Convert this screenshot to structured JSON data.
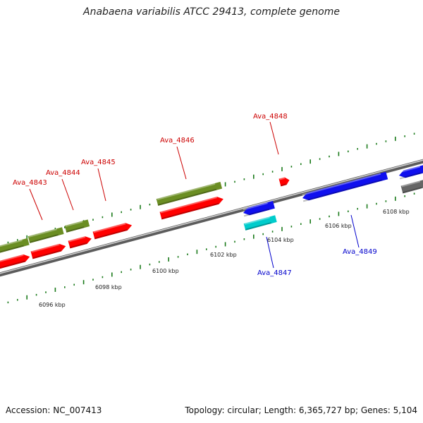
{
  "title": "Anabaena variabilis ATCC 29413, complete genome",
  "footer": {
    "accession": "Accession: NC_007413",
    "summary": "Topology: circular; Length: 6,365,727 bp; Genes: 5,104"
  },
  "colors": {
    "olive": "#6b8e23",
    "red": "#ff0000",
    "blue": "#1010ee",
    "cyan": "#00cccc",
    "gray": "#666666",
    "tick": "#1a7a1a",
    "label_red": "#cc0000",
    "label_blue": "#0000cc"
  },
  "coordinate_labels": [
    "6096 kbp",
    "6098 kbp",
    "6100 kbp",
    "6102 kbp",
    "6104 kbp",
    "6106 kbp",
    "6108 kbp"
  ],
  "gene_labels": {
    "top": [
      "Ava_4843",
      "Ava_4844",
      "Ava_4845",
      "Ava_4846",
      "Ava_4848"
    ],
    "bottom": [
      "Ava_4847",
      "Ava_4849"
    ]
  }
}
